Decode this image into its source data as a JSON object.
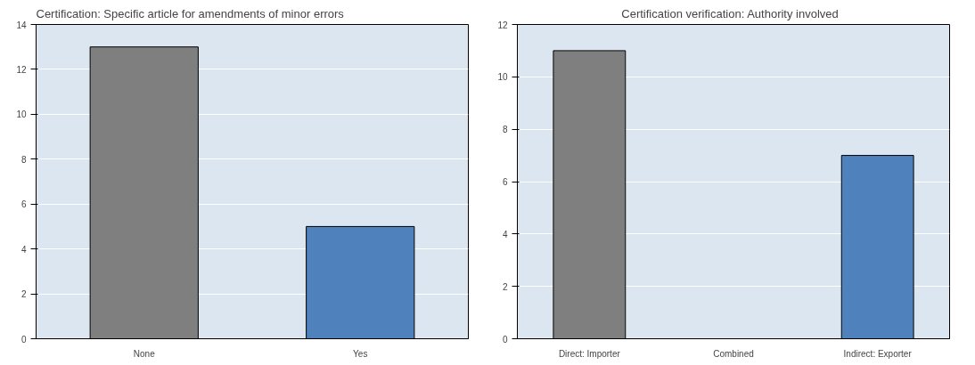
{
  "chart_data": [
    {
      "type": "bar",
      "title": "Certification:  Specific article for amendments of minor errors",
      "categories": [
        "None",
        "Yes"
      ],
      "values": [
        13,
        5
      ],
      "colors": [
        "#7f7f7f",
        "#4f81bd"
      ],
      "ylim": [
        0,
        14
      ],
      "yticks": [
        0,
        2,
        4,
        6,
        8,
        10,
        12,
        14
      ],
      "grid": "y"
    },
    {
      "type": "bar",
      "title": "Certification  verification:  Authority involved",
      "categories": [
        "Direct: Importer",
        "Combined",
        "Indirect: Exporter"
      ],
      "values": [
        11,
        0,
        7
      ],
      "colors": [
        "#7f7f7f",
        "#4f81bd",
        "#4f81bd"
      ],
      "ylim": [
        0,
        12
      ],
      "yticks": [
        0,
        2,
        4,
        6,
        8,
        10,
        12
      ],
      "grid": "y"
    }
  ]
}
